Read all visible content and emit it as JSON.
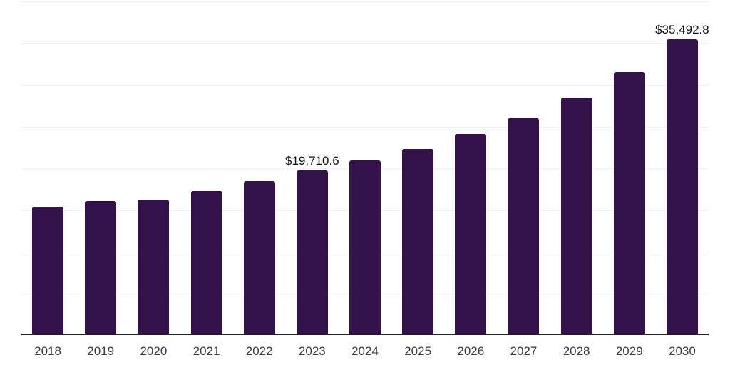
{
  "chart_data": {
    "type": "bar",
    "title": "",
    "xlabel": "",
    "ylabel": "",
    "categories": [
      "2018",
      "2019",
      "2020",
      "2021",
      "2022",
      "2023",
      "2024",
      "2025",
      "2026",
      "2027",
      "2028",
      "2029",
      "2030"
    ],
    "values": [
      15360,
      16040,
      16210,
      17230,
      18430,
      19710.6,
      20900,
      22350,
      24060,
      26020,
      28490,
      31570,
      35492.8
    ],
    "annotations": [
      {
        "category": "2023",
        "text": "$19,710.6"
      },
      {
        "category": "2030",
        "text": "$35,492.8"
      }
    ],
    "ylim": [
      0,
      40000
    ],
    "gridline_step": 5000,
    "grid_on": true,
    "legend_position": "none",
    "y_axis_tick_labels": "none",
    "colors": {
      "bar": "#35114a",
      "gridline": "#f2f2f2",
      "axis_line": "#26242e",
      "x_tick_label": "#3d3d3d",
      "annotation_text": "#111111",
      "background": "#ffffff"
    }
  }
}
